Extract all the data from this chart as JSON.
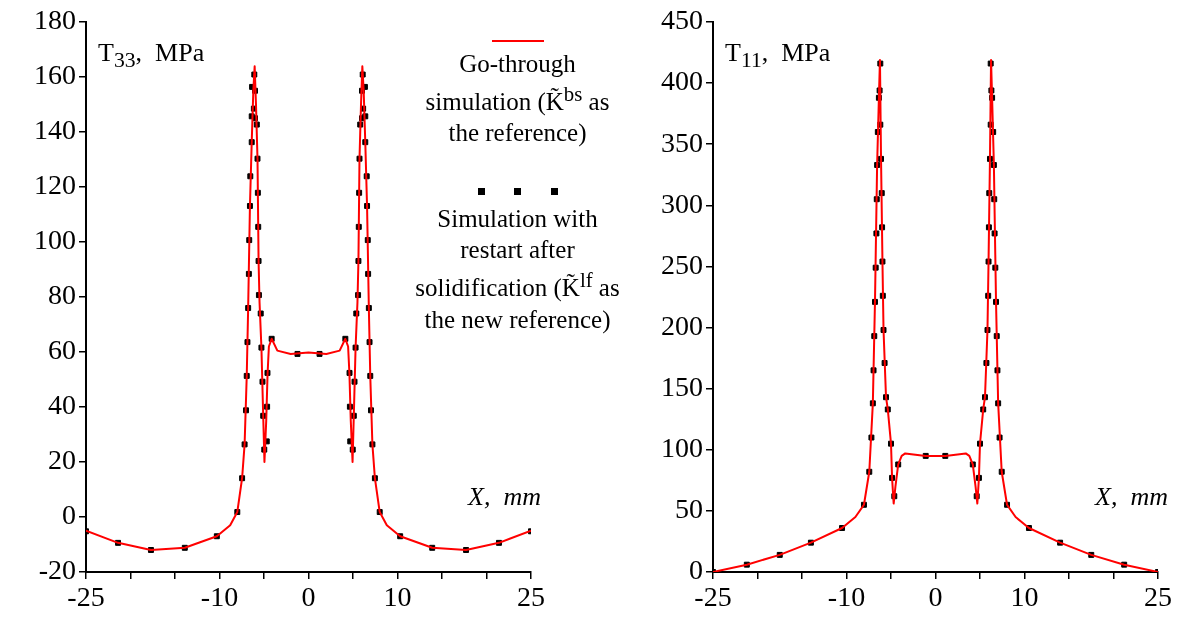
{
  "chart_data": [
    {
      "type": "line",
      "ylabel": "T$_{33}$,  MPa",
      "xlabel": "X,  mm",
      "legend": "top right",
      "xlim": [
        -25,
        25
      ],
      "xticks": [
        -25,
        {
          "value": -20,
          "label": null
        },
        {
          "value": -15,
          "label": null
        },
        -10,
        {
          "value": -5,
          "label": null
        },
        0,
        {
          "value": 5,
          "label": null
        },
        10,
        {
          "value": 15,
          "label": null
        },
        {
          "value": 20,
          "label": null
        },
        25
      ],
      "ylim": [
        -20,
        180
      ],
      "yticks": [
        -20,
        0,
        20,
        40,
        60,
        80,
        100,
        120,
        140,
        160,
        180
      ],
      "grid": false,
      "series": [
        {
          "name": "Go-through simulation (K̃$^{bs}$ as the reference)",
          "color": "#ff0000",
          "x": [
            -25,
            -21.4,
            -17.7,
            -13.9,
            -10.3,
            -8.8,
            -8.0,
            -7.46,
            -7.18,
            -6.94,
            -6.78,
            -6.58,
            -6.38,
            -6.2,
            -6.05,
            -5.9,
            -5.73,
            -5.61,
            -5.5,
            -5.29,
            -5.09,
            -4.95,
            -4.75,
            -4.6,
            -4.45,
            -4.14,
            -3.5,
            -2,
            0,
            2,
            3.5,
            4.14,
            4.45,
            4.6,
            4.75,
            4.95,
            5.09,
            5.29,
            5.5,
            5.61,
            5.73,
            5.9,
            6.05,
            6.2,
            6.38,
            6.58,
            6.78,
            6.94,
            7.18,
            7.46,
            8.0,
            8.8,
            10.3,
            13.9,
            17.7,
            21.4,
            25
          ],
          "values": [
            -5,
            -9.4,
            -12,
            -11.2,
            -7,
            -3,
            1.8,
            14.1,
            26.4,
            51.3,
            76,
            113.1,
            136.3,
            155,
            163.9,
            150,
            130.3,
            93.1,
            78,
            61.6,
            36.8,
            20,
            35,
            52,
            62,
            64.8,
            60.5,
            59.3,
            59.8,
            59.3,
            60.5,
            64.8,
            62,
            52,
            35,
            20,
            36.8,
            61.6,
            78,
            93.1,
            130.3,
            150,
            163.9,
            155,
            136.3,
            113.1,
            76,
            51.3,
            26.4,
            14.1,
            1.8,
            -3,
            -7,
            -11.2,
            -12,
            -9.4,
            -5
          ]
        },
        {
          "name": "Simulation with restart after solidification (K̃$^{lf}$ as the new reference)",
          "type": "scatter",
          "marker": "square",
          "color": "#000000",
          "x": [
            -25,
            -21.4,
            -17.7,
            -13.9,
            -10.3,
            -8.0,
            -7.46,
            -7.18,
            -7.02,
            -6.94,
            -6.86,
            -6.78,
            -6.7,
            -6.66,
            -6.58,
            -6.54,
            -6.38,
            -6.38,
            -6.34,
            -6.09,
            -6.01,
            -6.14,
            -6.01,
            -5.81,
            -5.73,
            -5.69,
            -5.65,
            -5.61,
            -5.57,
            -5.37,
            -5.29,
            -5.17,
            -5.09,
            -4.97,
            -4.69,
            -4.65,
            -4.61,
            -4.14,
            -1.24,
            25,
            21.4,
            17.7,
            13.9,
            10.3,
            8.0,
            7.46,
            7.18,
            7.02,
            6.94,
            6.86,
            6.78,
            6.7,
            6.66,
            6.58,
            6.54,
            6.38,
            6.38,
            6.34,
            6.09,
            6.01,
            6.14,
            6.01,
            5.81,
            5.73,
            5.69,
            5.65,
            5.61,
            5.57,
            5.37,
            5.29,
            5.17,
            5.09,
            4.97,
            4.69,
            4.65,
            4.61,
            4.14,
            1.24
          ],
          "values": [
            -5.2,
            -9.4,
            -12,
            -11.2,
            -7,
            1.8,
            14.1,
            26.4,
            38.8,
            51.3,
            63.6,
            76,
            88.4,
            100.7,
            113.1,
            123.9,
            136.3,
            145.7,
            156.4,
            160.9,
            155,
            148.5,
            145,
            142.7,
            130.3,
            117.9,
            105.5,
            93.1,
            80.7,
            74,
            61.6,
            49.2,
            36.8,
            24.5,
            27.5,
            40.1,
            52.4,
            64.8,
            59.3,
            -5.2,
            -9.4,
            -12,
            -11.2,
            -7,
            1.8,
            14.1,
            26.4,
            38.8,
            51.3,
            63.6,
            76,
            88.4,
            100.7,
            113.1,
            123.9,
            136.3,
            145.7,
            156.4,
            160.9,
            155,
            148.5,
            145,
            142.7,
            130.3,
            117.9,
            105.5,
            93.1,
            80.7,
            74,
            61.6,
            49.2,
            36.8,
            24.5,
            27.5,
            40.1,
            52.4,
            64.8,
            59.3
          ]
        }
      ]
    },
    {
      "type": "line",
      "ylabel": "T$_{11}$,  MPa",
      "xlabel": "X,  mm",
      "legend": false,
      "xlim": [
        -25,
        25
      ],
      "xticks": [
        -25,
        {
          "value": -20,
          "label": null
        },
        {
          "value": -15,
          "label": null
        },
        -10,
        {
          "value": -5,
          "label": null
        },
        0,
        {
          "value": 5,
          "label": null
        },
        10,
        {
          "value": 15,
          "label": null
        },
        {
          "value": 20,
          "label": null
        },
        25
      ],
      "ylim": [
        0,
        450
      ],
      "yticks": [
        0,
        50,
        100,
        150,
        200,
        250,
        300,
        350,
        400,
        450
      ],
      "grid": false,
      "series": [
        {
          "color": "#ff0000",
          "x": [
            -25,
            -21.2,
            -17.5,
            -14,
            -10.5,
            -9,
            -8.04,
            -7.44,
            -7.04,
            -6.8,
            -6.56,
            -6.36,
            -6.24,
            -6.12,
            -5.96,
            -5.84,
            -5.56,
            -5.36,
            -5,
            -4.88,
            -4.7,
            -4.5,
            -4.19,
            -3.8,
            -3.4,
            -1.1,
            0,
            1.1,
            3.4,
            3.8,
            4.19,
            4.5,
            4.7,
            4.88,
            5,
            5.36,
            5.56,
            5.84,
            5.96,
            6.12,
            6.24,
            6.36,
            6.56,
            6.8,
            7.04,
            7.44,
            8.04,
            9,
            10.5,
            14,
            17.5,
            21.2,
            25
          ],
          "values": [
            0,
            6,
            14,
            24,
            36,
            45,
            55,
            82,
            138,
            221,
            333,
            388,
            419,
            338,
            254,
            198,
            143,
            133,
            105,
            77,
            56,
            70,
            88,
            95,
            97,
            95,
            95,
            95,
            97,
            95,
            88,
            70,
            56,
            77,
            105,
            133,
            143,
            198,
            254,
            338,
            419,
            388,
            333,
            221,
            138,
            82,
            55,
            45,
            36,
            24,
            14,
            6,
            0
          ]
        },
        {
          "type": "scatter",
          "marker": "square",
          "color": "#000000",
          "x": [
            -25,
            -21.2,
            -17.5,
            -14,
            -10.5,
            -8.04,
            -7.44,
            -7.2,
            -7.04,
            -6.96,
            -6.88,
            -6.8,
            -6.72,
            -6.64,
            -6.6,
            -6.56,
            -6.48,
            -6.36,
            -6.2,
            -6.28,
            -6.2,
            -6.12,
            -6.04,
            -6,
            -5.96,
            -5.92,
            -5.84,
            -5.72,
            -5.56,
            -5.36,
            -5,
            -4.88,
            -4.63,
            -4.19,
            -1.1,
            25,
            21.2,
            17.5,
            14,
            10.5,
            8.04,
            7.44,
            7.2,
            7.04,
            6.96,
            6.88,
            6.8,
            6.72,
            6.64,
            6.6,
            6.56,
            6.48,
            6.36,
            6.2,
            6.28,
            6.2,
            6.12,
            6.04,
            6,
            5.96,
            5.92,
            5.84,
            5.72,
            5.56,
            5.36,
            5,
            4.88,
            4.63,
            4.19,
            1.1
          ],
          "values": [
            0,
            6,
            14,
            24,
            36,
            55,
            82,
            110,
            138,
            165,
            193,
            221,
            249,
            277,
            305,
            333,
            360,
            388,
            416,
            394,
            366,
            338,
            310,
            282,
            254,
            226,
            198,
            171,
            143,
            133,
            105,
            77,
            62,
            88,
            95,
            0,
            6,
            14,
            24,
            36,
            55,
            82,
            110,
            138,
            165,
            193,
            221,
            249,
            277,
            305,
            333,
            360,
            388,
            416,
            394,
            366,
            338,
            310,
            282,
            254,
            226,
            198,
            171,
            143,
            133,
            105,
            77,
            62,
            88,
            95
          ]
        }
      ]
    }
  ]
}
